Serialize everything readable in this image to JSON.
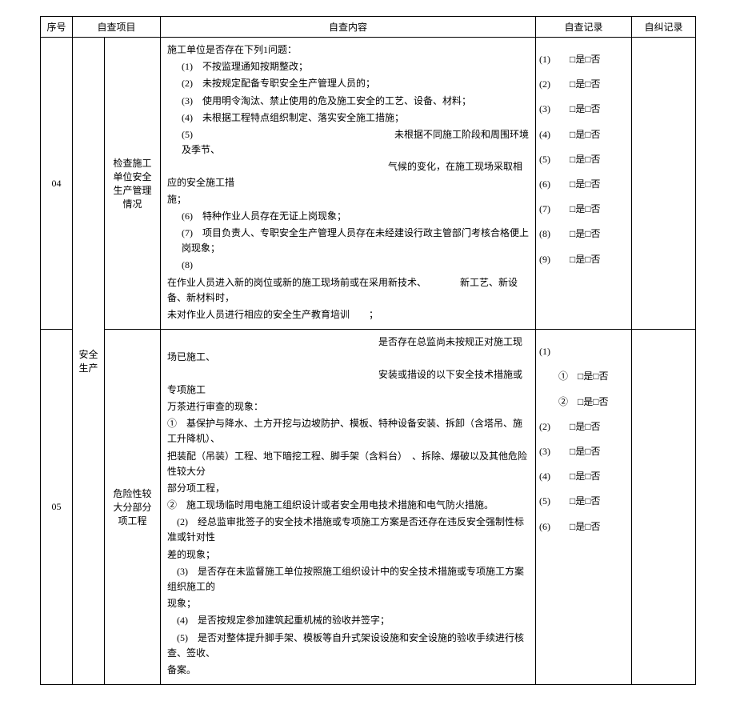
{
  "headers": {
    "seq": "序号",
    "project": "自查项目",
    "content": "自查内容",
    "record": "自查记录",
    "fix": "自纠记录"
  },
  "category": "安全\n生产",
  "row04": {
    "seq": "04",
    "sub": "检查施工\n单位安全\n生产管理\n情况",
    "c_intro": "施工单位是否存在下列1问题：",
    "c1": "(1)　不按监理通知按期整改；",
    "c2": "(2)　未按规定配备专职安全生产管理人员的；",
    "c3": "(3)　使用明令淘汰、禁止使用的危及施工安全的工艺、设备、材料；",
    "c4": "(4)　未根据工程特点组织制定、落实安全施工措施；",
    "c5a": "(5)　　　　　　　　　　　　　　　　　　　　　未根据不同施工阶段和周围环境及季节、",
    "c5b": "　　　　　　　　　　　　　　　　　　　　　　　气候的变化，在施工现场采取相应的安全施工措",
    "c5c": "施；",
    "c6": "(6)　特种作业人员存在无证上岗现象；",
    "c7": "(7)　项目负责人、专职安全生产管理人员存在未经建设行政主管部门考核合格便上岗现象；",
    "c8": "(8)",
    "c9a": "在作业人员进入新的岗位或新的施工现场前或在采用新技术、　　　　新工艺、新设备、新材料时，",
    "c9b": "未对作业人员进行相应的安全生产教育培训　　；",
    "r1": "(1)　　□是□否",
    "r2": "(2)　　□是□否",
    "r3": "(3)　　□是□否",
    "r4": "(4)　　□是□否",
    "r5": "(5)　　□是□否",
    "r6": "(6)　　□是□否",
    "r7": "(7)　　□是□否",
    "r8": "(8)　　□是□否",
    "r9": "(9)　　□是□否"
  },
  "row05": {
    "seq": "05",
    "sub": "危险性较\n大分部分\n项工程",
    "c1a": "　　　　　　　　　　　　　　　　　　　　　　是否存在总监尚未按规正对施工现场已施工、",
    "c1b": "　　　　　　　　　　　　　　　　　　　　　　安装或措设的以下安全技术措施或专项施工",
    "c1c": "万茶进行审查的现象：",
    "ci1": "①　基保护与降水、土方开挖与边坡防护、模板、特种设备安装、拆卸（含塔吊、施工升降机）、",
    "ci2": "把装配（吊装）工程、地下暗挖工程、脚手架（含料台）　、拆除、爆破以及其他危险性较大分",
    "ci3": "部分项工程，",
    "cj1": "②　施工现场临时用电施工组织设计或者安全用电技术措施和电气防火措施。",
    "c2a": "　(2)　经总监审批签子的安全技术措施或专项施工方案是否还存在违反安全强制性标准或针对性",
    "c2b": "差的现象；",
    "c3a": "　(3)　是否存在未监督施工单位按照施工组织设计中的安全技术措施或专项施工方案组织施工的",
    "c3b": "现象；",
    "c4": "　(4)　是否按规定参加建筑起重机械的验收并签字；",
    "c5a": "　(5)　是否对整体提升脚手架、模板等自升式架设设施和安全设施的验收手续进行核查、签收、",
    "c5b": "备案。",
    "r1": "(1)",
    "r1a": "　　①　□是□否",
    "r1b": "　　②　□是□否",
    "r2": "(2)　　□是□否",
    "r3": "(3)　　□是□否",
    "r4": "(4)　　□是□否",
    "r5": "(5)　　□是□否",
    "r6": "(6)　　□是□否"
  }
}
